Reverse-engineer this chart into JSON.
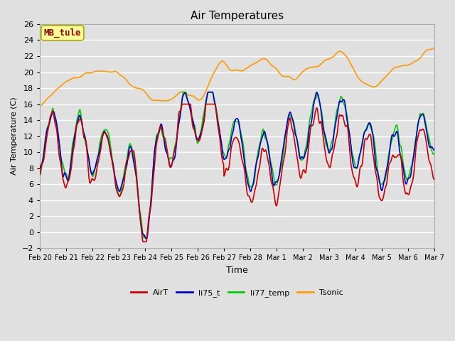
{
  "title": "Air Temperatures",
  "xlabel": "Time",
  "ylabel": "Air Temperature (C)",
  "ylim": [
    -2,
    26
  ],
  "yticks": [
    -2,
    0,
    2,
    4,
    6,
    8,
    10,
    12,
    14,
    16,
    18,
    20,
    22,
    24,
    26
  ],
  "bg_color": "#e0e0e0",
  "plot_bg_color": "#e0e0e0",
  "legend_label": "MB_tule",
  "legend_box_color": "#ffff99",
  "legend_text_color": "#990000",
  "grid_color": "#ffffff",
  "colors": {
    "AirT": "#cc0000",
    "li75_t": "#0000cc",
    "li77_temp": "#00cc00",
    "Tsonic": "#ff9900"
  },
  "line_width": 1.2,
  "date_labels": [
    "Feb 20",
    "Feb 21",
    "Feb 22",
    "Feb 23",
    "Feb 24",
    "Feb 25",
    "Feb 26",
    "Feb 27",
    "Feb 28",
    "Mar 1",
    "Mar 2",
    "Mar 3",
    "Mar 4",
    "Mar 5",
    "Mar 6",
    "Mar 7"
  ],
  "n_points": 800
}
